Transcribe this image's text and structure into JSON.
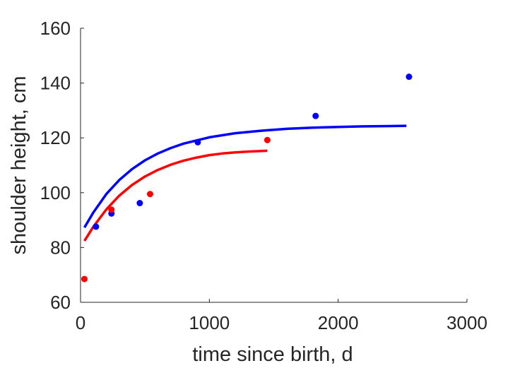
{
  "chart_data": {
    "type": "scatter",
    "xlabel": "time since birth, d",
    "ylabel": "shoulder height, cm",
    "xlim": [
      0,
      3000
    ],
    "ylim": [
      60,
      160
    ],
    "xticks": [
      0,
      1000,
      2000,
      3000
    ],
    "yticks": [
      60,
      80,
      100,
      120,
      140,
      160
    ],
    "xtick_labels": [
      "0",
      "1000",
      "2000",
      "3000"
    ],
    "ytick_labels": [
      "60",
      "80",
      "100",
      "120",
      "140",
      "160"
    ],
    "grid": false,
    "series": [
      {
        "color": "#0000ff",
        "points": [
          {
            "x": 120,
            "y": 87.6
          },
          {
            "x": 240,
            "y": 92.4
          },
          {
            "x": 460,
            "y": 96.2
          },
          {
            "x": 910,
            "y": 118.4
          },
          {
            "x": 1825,
            "y": 128.0
          },
          {
            "x": 2550,
            "y": 142.3
          }
        ],
        "curve": [
          {
            "x": 30,
            "y": 87.3
          },
          {
            "x": 100,
            "y": 92.8
          },
          {
            "x": 200,
            "y": 99.5
          },
          {
            "x": 300,
            "y": 104.6
          },
          {
            "x": 400,
            "y": 108.6
          },
          {
            "x": 500,
            "y": 111.8
          },
          {
            "x": 600,
            "y": 114.3
          },
          {
            "x": 700,
            "y": 116.3
          },
          {
            "x": 800,
            "y": 117.9
          },
          {
            "x": 1000,
            "y": 120.2
          },
          {
            "x": 1200,
            "y": 121.7
          },
          {
            "x": 1400,
            "y": 122.6
          },
          {
            "x": 1600,
            "y": 123.3
          },
          {
            "x": 1800,
            "y": 123.7
          },
          {
            "x": 2000,
            "y": 124.0
          },
          {
            "x": 2200,
            "y": 124.2
          },
          {
            "x": 2400,
            "y": 124.3
          },
          {
            "x": 2530,
            "y": 124.4
          }
        ]
      },
      {
        "color": "#ff0000",
        "points": [
          {
            "x": 30,
            "y": 68.5
          },
          {
            "x": 240,
            "y": 93.8
          },
          {
            "x": 540,
            "y": 99.5
          },
          {
            "x": 1450,
            "y": 119.2
          }
        ],
        "curve": [
          {
            "x": 30,
            "y": 82.4
          },
          {
            "x": 100,
            "y": 87.6
          },
          {
            "x": 200,
            "y": 93.9
          },
          {
            "x": 300,
            "y": 98.9
          },
          {
            "x": 400,
            "y": 102.8
          },
          {
            "x": 500,
            "y": 105.9
          },
          {
            "x": 600,
            "y": 108.3
          },
          {
            "x": 700,
            "y": 110.2
          },
          {
            "x": 800,
            "y": 111.7
          },
          {
            "x": 900,
            "y": 112.8
          },
          {
            "x": 1000,
            "y": 113.7
          },
          {
            "x": 1100,
            "y": 114.3
          },
          {
            "x": 1200,
            "y": 114.7
          },
          {
            "x": 1300,
            "y": 115.0
          },
          {
            "x": 1450,
            "y": 115.3
          }
        ]
      }
    ]
  }
}
